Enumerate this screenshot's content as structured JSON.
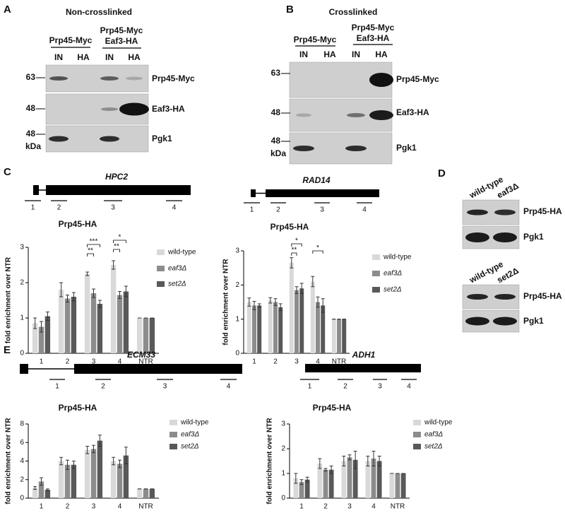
{
  "panel_labels": [
    "A",
    "B",
    "C",
    "D",
    "E"
  ],
  "blots": [
    {
      "title": "Non-crosslinked",
      "column_groups": [
        [
          "Prp45-Myc"
        ],
        [
          "Prp45-Myc",
          "Eaf3-HA"
        ]
      ],
      "lanes": [
        "IN",
        "HA",
        "IN",
        "HA"
      ],
      "markers": [
        "63",
        "48",
        "48",
        "kDa"
      ],
      "rows": [
        "Prp45-Myc",
        "Eaf3-HA",
        "Pgk1"
      ]
    },
    {
      "title": "Crosslinked",
      "column_groups": [
        [
          "Prp45-Myc"
        ],
        [
          "Prp45-Myc",
          "Eaf3-HA"
        ]
      ],
      "lanes": [
        "IN",
        "HA",
        "IN",
        "HA"
      ],
      "markers": [
        "63",
        "48",
        "48",
        "kDa"
      ],
      "rows": [
        "Prp45-Myc",
        "Eaf3-HA",
        "Pgk1"
      ]
    },
    {
      "lanes": [
        "wild-type",
        "eaf3Δ"
      ],
      "rows": [
        "Prp45-HA",
        "Pgk1"
      ]
    },
    {
      "lanes": [
        "wild-type",
        "set2Δ"
      ],
      "rows": [
        "Prp45-HA",
        "Pgk1"
      ]
    }
  ],
  "chart_data": [
    {
      "type": "bar",
      "gene": "HPC2",
      "regions": [
        "1",
        "2",
        "3",
        "4"
      ],
      "title": "Prp45-HA",
      "y_label": "fold enrichment over NTR",
      "categories": [
        "1",
        "2",
        "3",
        "4",
        "NTR"
      ],
      "ylim": [
        0,
        3
      ],
      "yticks": [
        0,
        1,
        2,
        3
      ],
      "series": [
        {
          "name": "wild-type",
          "color": "#d9d9d9",
          "values": [
            0.85,
            1.8,
            2.25,
            2.5,
            1
          ],
          "errors": [
            0.15,
            0.2,
            0.05,
            0.12,
            0
          ]
        },
        {
          "name": "eaf3Δ",
          "color": "#8c8c8c",
          "values": [
            0.75,
            1.55,
            1.7,
            1.65,
            1
          ],
          "errors": [
            0.15,
            0.1,
            0.12,
            0.1,
            0
          ]
        },
        {
          "name": "set2Δ",
          "color": "#595959",
          "values": [
            1.05,
            1.6,
            1.4,
            1.75,
            1
          ],
          "errors": [
            0.12,
            0.12,
            0.1,
            0.15,
            0
          ]
        }
      ],
      "annotations": [
        "***",
        "**",
        "*",
        "**"
      ]
    },
    {
      "type": "bar",
      "gene": "RAD14",
      "regions": [
        "1",
        "2",
        "3",
        "4"
      ],
      "title": "Prp45-HA",
      "y_label": "fold enrichment over NTR",
      "categories": [
        "1",
        "2",
        "3",
        "4",
        "NTR"
      ],
      "ylim": [
        0,
        3
      ],
      "yticks": [
        0,
        1,
        2,
        3
      ],
      "series": [
        {
          "name": "wild-type",
          "color": "#d9d9d9",
          "values": [
            1.5,
            1.55,
            2.65,
            2.1,
            1
          ],
          "errors": [
            0.12,
            0.08,
            0.15,
            0.15,
            0
          ]
        },
        {
          "name": "eaf3Δ",
          "color": "#8c8c8c",
          "values": [
            1.4,
            1.5,
            1.85,
            1.5,
            1
          ],
          "errors": [
            0.12,
            0.1,
            0.1,
            0.15,
            0
          ]
        },
        {
          "name": "set2Δ",
          "color": "#595959",
          "values": [
            1.4,
            1.35,
            1.9,
            1.4,
            1
          ],
          "errors": [
            0.05,
            0.1,
            0.15,
            0.2,
            0
          ]
        }
      ],
      "annotations": [
        "*",
        "**",
        "*"
      ]
    },
    {
      "type": "bar",
      "gene": "ECM33",
      "regions": [
        "1",
        "2",
        "3",
        "4"
      ],
      "title": "Prp45-HA",
      "y_label": "fold enrichment over NTR",
      "categories": [
        "1",
        "2",
        "3",
        "4",
        "NTR"
      ],
      "ylim": [
        0,
        8
      ],
      "yticks": [
        0,
        2,
        4,
        6,
        8
      ],
      "series": [
        {
          "name": "wild-type",
          "color": "#d9d9d9",
          "values": [
            1.1,
            4.0,
            5.2,
            4.0,
            1
          ],
          "errors": [
            0.15,
            0.4,
            0.4,
            0.4,
            0
          ]
        },
        {
          "name": "eaf3Δ",
          "color": "#8c8c8c",
          "values": [
            1.8,
            3.6,
            5.3,
            3.7,
            1
          ],
          "errors": [
            0.4,
            0.5,
            0.4,
            0.4,
            0
          ]
        },
        {
          "name": "set2Δ",
          "color": "#595959",
          "values": [
            0.9,
            3.6,
            6.2,
            4.6,
            1
          ],
          "errors": [
            0.1,
            0.4,
            0.6,
            0.9,
            0
          ]
        }
      ]
    },
    {
      "type": "bar",
      "gene": "ADH1",
      "regions": [
        "1",
        "2",
        "3",
        "4"
      ],
      "title": "Prp45-HA",
      "y_label": "fold enrichment over NTR",
      "categories": [
        "1",
        "2",
        "3",
        "4",
        "NTR"
      ],
      "ylim": [
        0,
        3
      ],
      "yticks": [
        0,
        1,
        2,
        3
      ],
      "series": [
        {
          "name": "wild-type",
          "color": "#d9d9d9",
          "values": [
            0.8,
            1.4,
            1.5,
            1.5,
            1
          ],
          "errors": [
            0.2,
            0.2,
            0.2,
            0.2,
            0
          ]
        },
        {
          "name": "eaf3Δ",
          "color": "#8c8c8c",
          "values": [
            0.65,
            1.15,
            1.65,
            1.6,
            1
          ],
          "errors": [
            0.1,
            0.05,
            0.1,
            0.3,
            0
          ]
        },
        {
          "name": "set2Δ",
          "color": "#595959",
          "values": [
            0.75,
            1.15,
            1.55,
            1.5,
            1
          ],
          "errors": [
            0.1,
            0.15,
            0.35,
            0.2,
            0
          ]
        }
      ]
    }
  ]
}
